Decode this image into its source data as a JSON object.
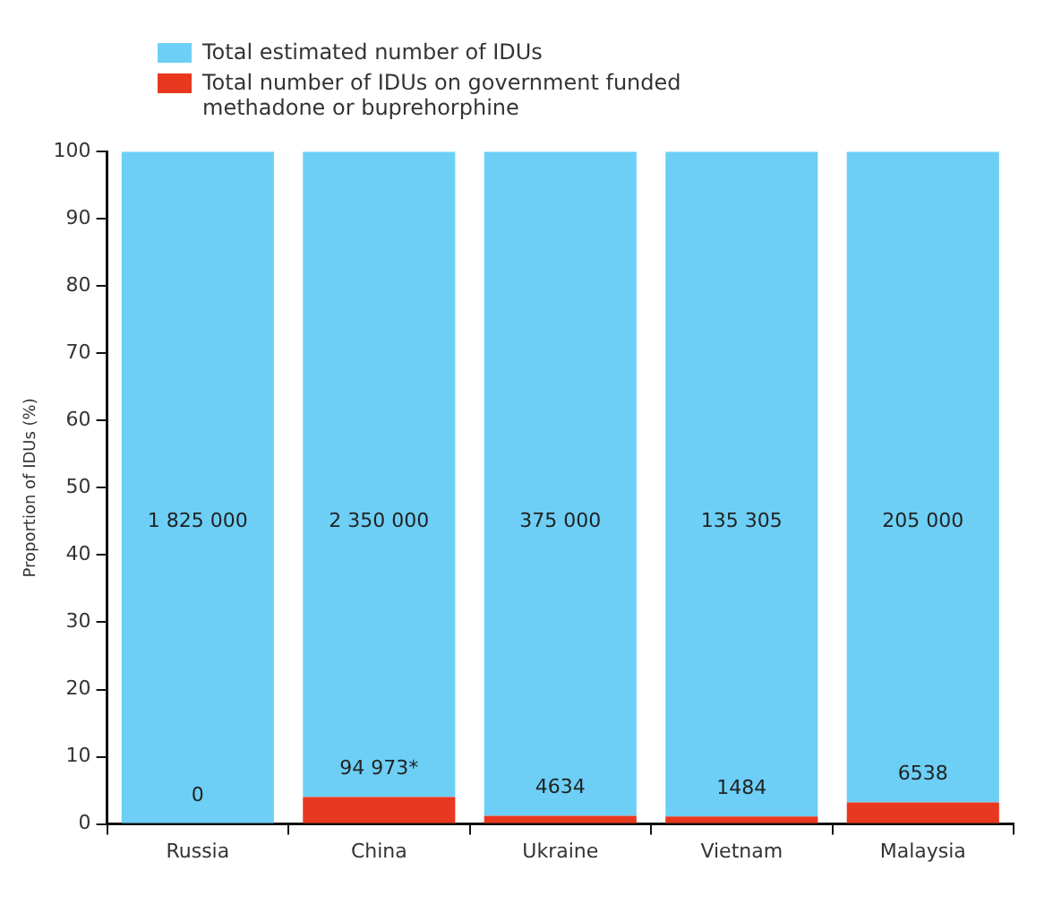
{
  "chart_data": {
    "type": "bar",
    "stacked": true,
    "ylabel": "Proportion of IDUs (%)",
    "categories": [
      "Russia",
      "China",
      "Ukraine",
      "Vietnam",
      "Malaysia"
    ],
    "series": [
      {
        "name": "Total number of IDUs on government funded methadone or buprehorphine",
        "color": "#e8381f",
        "values": [
          0,
          4.0,
          1.2,
          1.1,
          3.2
        ]
      },
      {
        "name": "Total estimated number of IDUs",
        "color": "#6dcff6",
        "values": [
          100,
          96.0,
          98.8,
          98.9,
          96.8
        ]
      }
    ],
    "annotations": [
      "1 825 000",
      "2 350 000",
      "375 000",
      "135 305",
      "205 000",
      "0",
      "94 973*",
      "4634",
      "1484",
      "6538"
    ],
    "ylim": [
      0,
      100
    ],
    "yticks": [
      0,
      10,
      20,
      30,
      40,
      50,
      60,
      70,
      80,
      90,
      100
    ],
    "grid": false,
    "legend": "top left"
  }
}
